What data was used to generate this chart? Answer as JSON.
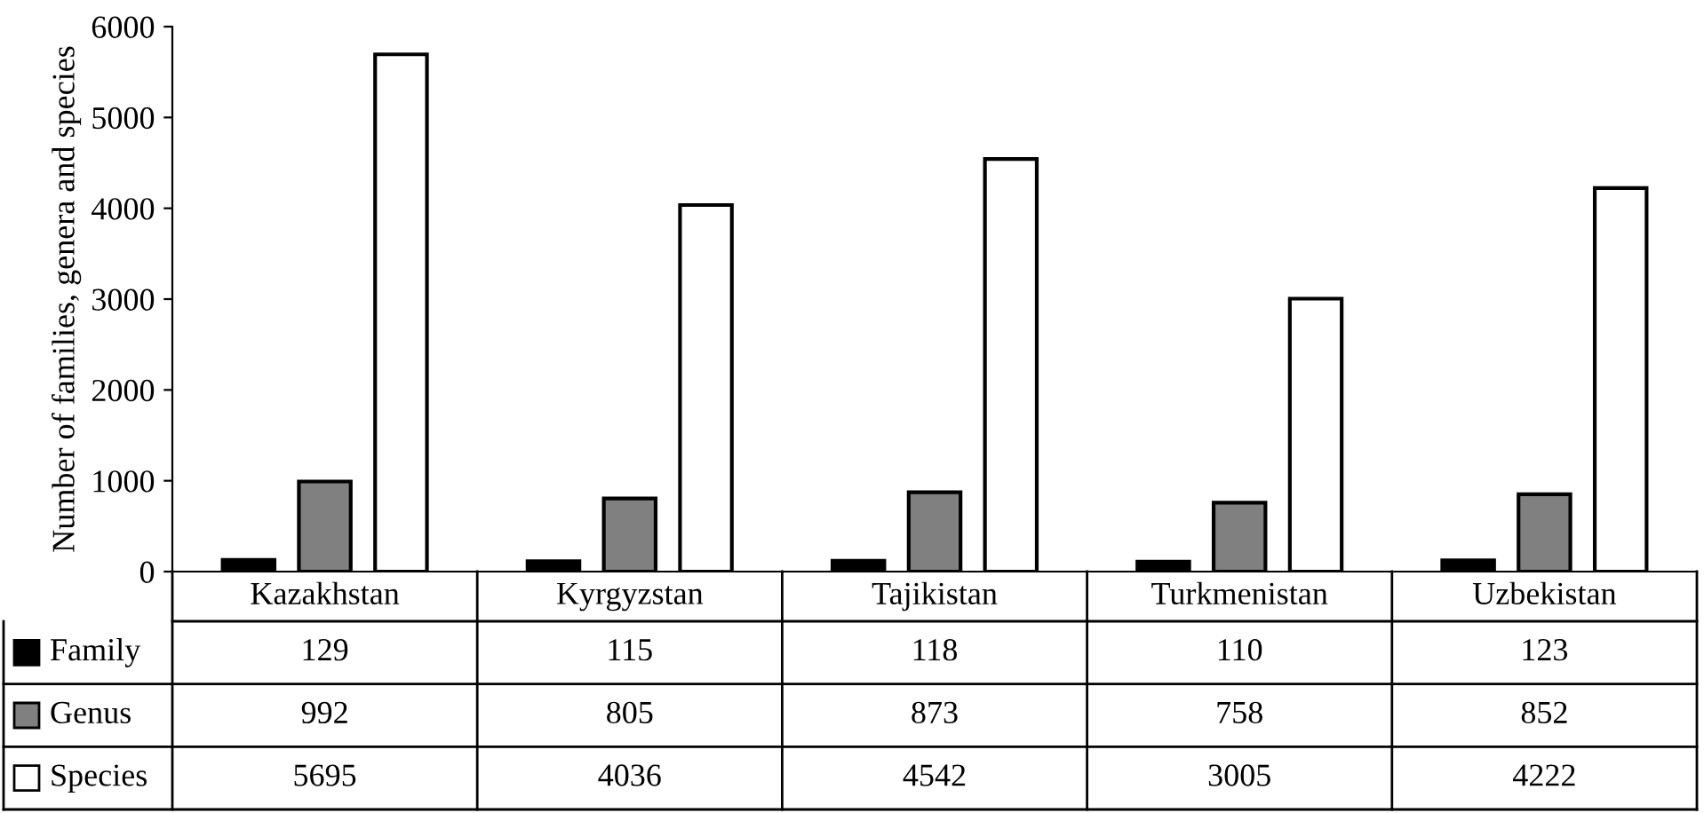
{
  "chart_data": {
    "type": "bar",
    "ylabel": "Number of families, genera and species",
    "categories": [
      "Kazakhstan",
      "Kyrgyzstan",
      "Tajikistan",
      "Turkmenistan",
      "Uzbekistan"
    ],
    "series": [
      {
        "name": "Family",
        "color": "#000000",
        "values": [
          129,
          115,
          118,
          110,
          123
        ]
      },
      {
        "name": "Genus",
        "color": "#808080",
        "values": [
          992,
          805,
          873,
          758,
          852
        ]
      },
      {
        "name": "Species",
        "color": "#ffffff",
        "values": [
          5695,
          4036,
          4542,
          3005,
          4222
        ]
      }
    ],
    "ylim": [
      0,
      6000
    ],
    "yticks": [
      0,
      1000,
      2000,
      3000,
      4000,
      5000,
      6000
    ],
    "grid": false,
    "legend": "bottom left",
    "data_labels": true
  }
}
